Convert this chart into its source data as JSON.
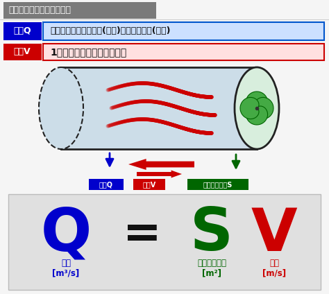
{
  "title": "『風量』と『風速』の違い",
  "title_bg": "#7a7a7a",
  "title_text_color": "#ffffff",
  "row1_label": "風量Q",
  "row1_desc": "単位時間あたりに通過(移動)する空気の量(体積)",
  "row1_label_bg": "#0000cc",
  "row1_desc_bg": "#cce0ff",
  "row1_border": "#0055cc",
  "row2_label": "風速V",
  "row2_desc": "1秒間に移動する空気の距離",
  "row2_label_bg": "#cc0000",
  "row2_desc_bg": "#ffe0e0",
  "row2_border": "#cc0000",
  "cylinder_body_color": "#ccdde8",
  "cylinder_border": "#222222",
  "fan_color": "#44aa44",
  "fan_bg": "#d8eedd",
  "wind_color": "#cc0000",
  "formula_bg": "#e0e0e0",
  "formula_border": "#bbbbbb",
  "Q_color": "#0000cc",
  "S_color": "#006600",
  "V_color": "#cc0000",
  "eq_color": "#111111",
  "label_Q": "風量Q",
  "label_Q_bg": "#0000cc",
  "label_V": "風速V",
  "label_V_bg": "#cc0000",
  "label_S": "通過する面積S",
  "label_S_bg": "#006600",
  "arrow_blue": "#0000cc",
  "arrow_red": "#cc0000",
  "arrow_green": "#006600",
  "bg_color": "#f5f5f5"
}
